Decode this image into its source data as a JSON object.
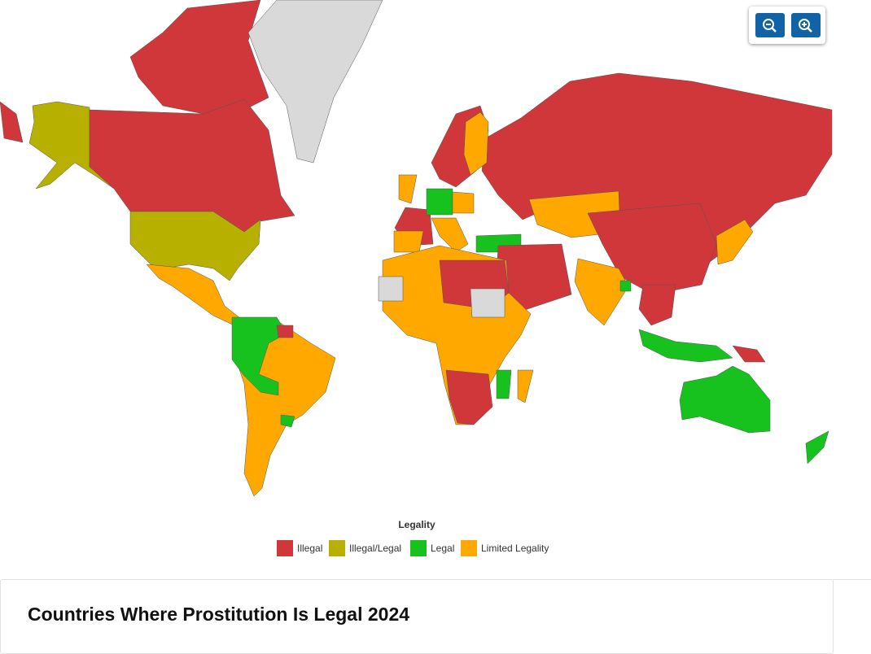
{
  "legend": {
    "title": "Legality",
    "items": [
      {
        "label": "Illegal",
        "color": "#d0373b"
      },
      {
        "label": "Illegal/Legal",
        "color": "#b8b000"
      },
      {
        "label": "Legal",
        "color": "#17c21f"
      },
      {
        "label": "Limited Legality",
        "color": "#ffa800"
      }
    ]
  },
  "no_data_color": "#d9d9d9",
  "heading": "Countries Where Prostitution Is Legal 2024"
}
